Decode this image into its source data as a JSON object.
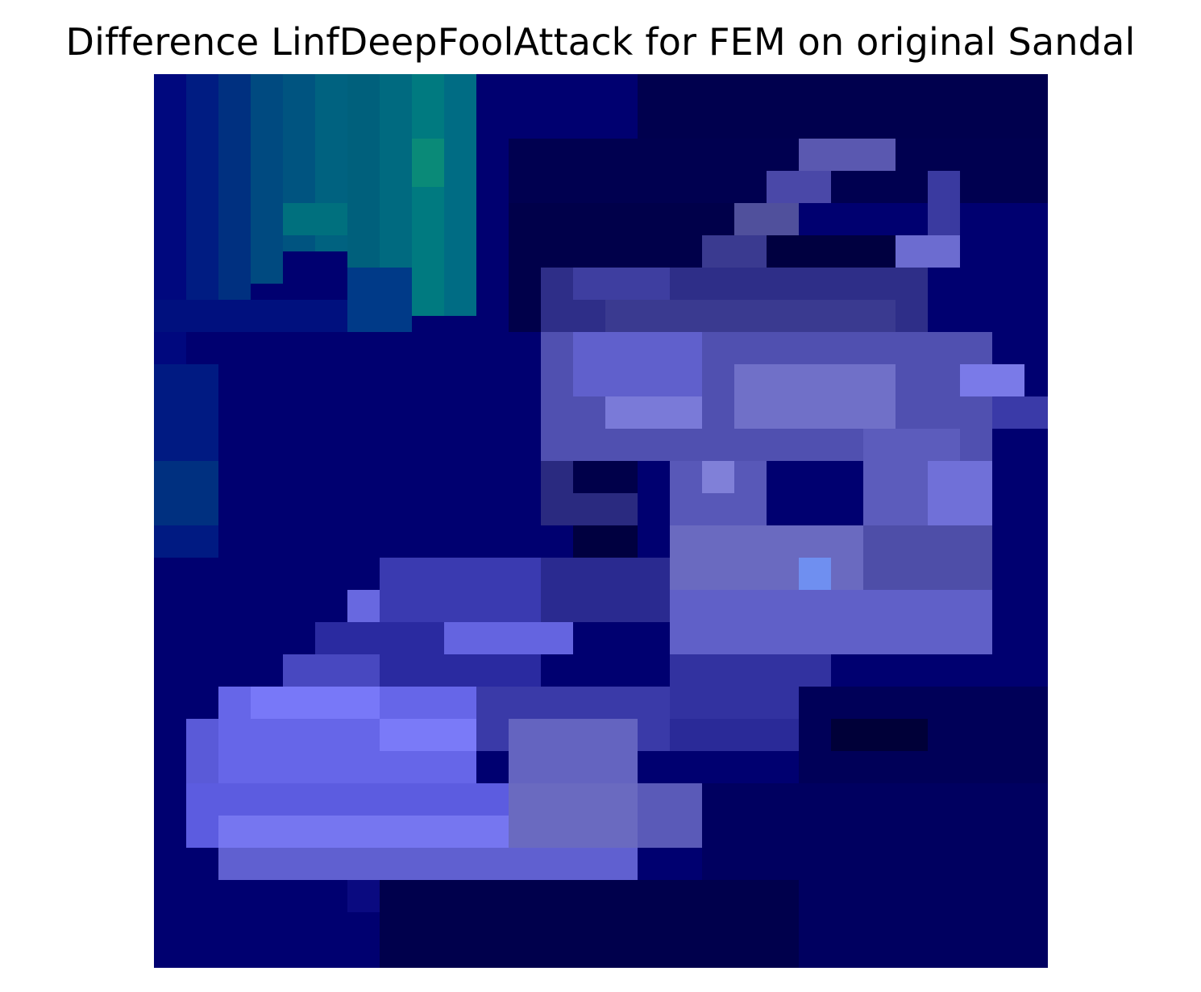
{
  "figure": {
    "title": "Difference LinfDeepFoolAttack for FEM on original Sandal",
    "image_alt": "Pixelated heatmap of a sandal: lavender/blue shoe shape on a dark navy background with a teal patch in the upper-left.",
    "palette": {
      "background": "#000070",
      "dark_navy": "#00004a",
      "teal": "#007a7a",
      "lavender": "#7f7ff5",
      "light_blue": "#6f8ff0"
    }
  }
}
